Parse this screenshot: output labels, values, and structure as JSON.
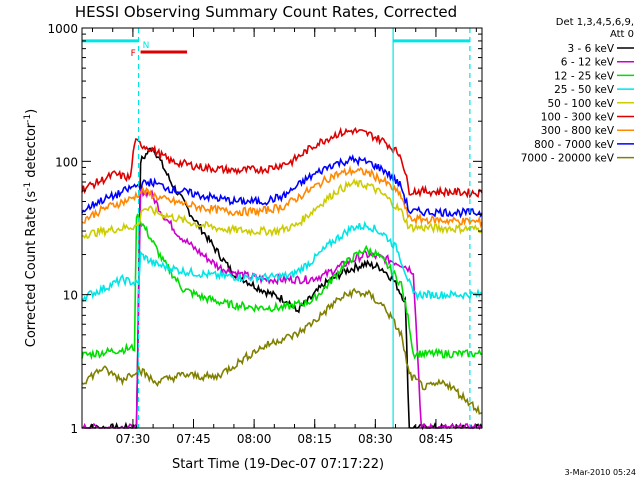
{
  "chart_data": {
    "type": "line",
    "title": "HESSI Observing Summary Count Rates, Corrected",
    "xlabel": "Start Time (19-Dec-07 07:17:22)",
    "ylabel_main": "Corrected Count Rate (s",
    "ylabel_sup1": "-1",
    "ylabel_mid": " detector",
    "ylabel_sup2": "-1",
    "ylabel_end": ")",
    "x_unit": "minutes after 07:17:22",
    "xlim": [
      0,
      99
    ],
    "ylim": [
      1,
      1000
    ],
    "yscale": "log",
    "x_ticks": [
      {
        "label": "07:30",
        "value": 12.6
      },
      {
        "label": "07:45",
        "value": 27.6
      },
      {
        "label": "08:00",
        "value": 42.6
      },
      {
        "label": "08:15",
        "value": 57.6
      },
      {
        "label": "08:30",
        "value": 72.6
      },
      {
        "label": "08:45",
        "value": 87.6
      }
    ],
    "y_ticks": [
      {
        "label": "1",
        "value": 1
      },
      {
        "label": "10",
        "value": 10
      },
      {
        "label": "100",
        "value": 100
      },
      {
        "label": "1000",
        "value": 1000
      }
    ],
    "legend_header": [
      "Det 1,3,4,5,6,9,",
      "Att 0"
    ],
    "series": [
      {
        "name": "3 - 6 keV",
        "color": "#000000",
        "points": [
          [
            0,
            1
          ],
          [
            13.5,
            1
          ],
          [
            14.5,
            100
          ],
          [
            17.5,
            130
          ],
          [
            22,
            70
          ],
          [
            27,
            40
          ],
          [
            33,
            22
          ],
          [
            37,
            15
          ],
          [
            42,
            12
          ],
          [
            47,
            10
          ],
          [
            51,
            9
          ],
          [
            53,
            7.5
          ],
          [
            56,
            9
          ],
          [
            60,
            12
          ],
          [
            65,
            15
          ],
          [
            70,
            17
          ],
          [
            74,
            16
          ],
          [
            77,
            13
          ],
          [
            80,
            9
          ],
          [
            81,
            1
          ],
          [
            99,
            1
          ]
        ]
      },
      {
        "name": "6 - 12 keV",
        "color": "#cc00cc",
        "points": [
          [
            0,
            1
          ],
          [
            13.5,
            1
          ],
          [
            14.5,
            60
          ],
          [
            17,
            58
          ],
          [
            20,
            40
          ],
          [
            24,
            28
          ],
          [
            28,
            22
          ],
          [
            34,
            16
          ],
          [
            40,
            14
          ],
          [
            45,
            13
          ],
          [
            50,
            13
          ],
          [
            56,
            13
          ],
          [
            60,
            14
          ],
          [
            65,
            17
          ],
          [
            70,
            20
          ],
          [
            74,
            19
          ],
          [
            79,
            17
          ],
          [
            82,
            15
          ],
          [
            84,
            1
          ],
          [
            99,
            1
          ]
        ]
      },
      {
        "name": "12 - 25 keV",
        "color": "#00dd00",
        "points": [
          [
            0,
            3.5
          ],
          [
            8,
            3.8
          ],
          [
            13,
            4
          ],
          [
            13.5,
            40
          ],
          [
            16,
            30
          ],
          [
            20,
            18
          ],
          [
            25,
            11
          ],
          [
            30,
            9.5
          ],
          [
            36,
            8.5
          ],
          [
            43,
            8
          ],
          [
            50,
            8
          ],
          [
            57,
            9
          ],
          [
            61,
            12
          ],
          [
            65,
            17
          ],
          [
            70,
            22
          ],
          [
            73,
            20
          ],
          [
            76,
            16
          ],
          [
            79,
            12
          ],
          [
            81,
            6
          ],
          [
            82,
            3.6
          ],
          [
            99,
            3.6
          ]
        ]
      },
      {
        "name": "25 - 50 keV",
        "color": "#00e5e5",
        "points": [
          [
            0,
            9.5
          ],
          [
            5,
            11
          ],
          [
            10,
            13
          ],
          [
            14,
            12
          ],
          [
            14.5,
            20
          ],
          [
            18,
            17
          ],
          [
            25,
            15
          ],
          [
            32,
            14
          ],
          [
            40,
            13.5
          ],
          [
            47,
            13.5
          ],
          [
            52,
            14
          ],
          [
            57,
            18
          ],
          [
            62,
            25
          ],
          [
            67,
            32
          ],
          [
            71,
            33
          ],
          [
            75,
            28
          ],
          [
            78,
            22
          ],
          [
            80,
            15
          ],
          [
            82,
            10
          ],
          [
            99,
            10
          ]
        ]
      },
      {
        "name": "50 - 100 keV",
        "color": "#cccc00",
        "points": [
          [
            0,
            28
          ],
          [
            8,
            31
          ],
          [
            14,
            33
          ],
          [
            15,
            45
          ],
          [
            20,
            40
          ],
          [
            28,
            34
          ],
          [
            35,
            31
          ],
          [
            42,
            30
          ],
          [
            48,
            30
          ],
          [
            53,
            33
          ],
          [
            58,
            45
          ],
          [
            63,
            60
          ],
          [
            67,
            68
          ],
          [
            71,
            66
          ],
          [
            75,
            55
          ],
          [
            79,
            42
          ],
          [
            81,
            32
          ],
          [
            99,
            31
          ]
        ]
      },
      {
        "name": "100 - 300 keV",
        "color": "#dd0000",
        "points": [
          [
            0,
            62
          ],
          [
            4,
            70
          ],
          [
            8,
            80
          ],
          [
            12,
            75
          ],
          [
            13,
            140
          ],
          [
            17,
            125
          ],
          [
            22,
            100
          ],
          [
            30,
            90
          ],
          [
            38,
            85
          ],
          [
            46,
            88
          ],
          [
            52,
            100
          ],
          [
            58,
            135
          ],
          [
            63,
            160
          ],
          [
            67,
            170
          ],
          [
            71,
            160
          ],
          [
            75,
            140
          ],
          [
            79,
            110
          ],
          [
            81,
            60
          ],
          [
            99,
            58
          ]
        ]
      },
      {
        "name": "300 - 800 keV",
        "color": "#ff8800",
        "points": [
          [
            0,
            36
          ],
          [
            6,
            45
          ],
          [
            12,
            52
          ],
          [
            15,
            60
          ],
          [
            20,
            52
          ],
          [
            28,
            46
          ],
          [
            36,
            42
          ],
          [
            44,
            42
          ],
          [
            50,
            46
          ],
          [
            56,
            60
          ],
          [
            62,
            78
          ],
          [
            67,
            85
          ],
          [
            71,
            82
          ],
          [
            75,
            70
          ],
          [
            79,
            55
          ],
          [
            81,
            37
          ],
          [
            99,
            35
          ]
        ]
      },
      {
        "name": "800 - 7000 keV",
        "color": "#0000ff",
        "points": [
          [
            0,
            42
          ],
          [
            4,
            50
          ],
          [
            8,
            55
          ],
          [
            13,
            65
          ],
          [
            17,
            70
          ],
          [
            22,
            62
          ],
          [
            30,
            55
          ],
          [
            38,
            50
          ],
          [
            45,
            50
          ],
          [
            50,
            55
          ],
          [
            56,
            75
          ],
          [
            62,
            95
          ],
          [
            67,
            103
          ],
          [
            71,
            98
          ],
          [
            75,
            85
          ],
          [
            79,
            65
          ],
          [
            81,
            42
          ],
          [
            99,
            41
          ]
        ]
      },
      {
        "name": "7000 - 20000 keV",
        "color": "#808000",
        "points": [
          [
            0,
            2.2
          ],
          [
            5,
            2.8
          ],
          [
            10,
            2.3
          ],
          [
            14,
            2.8
          ],
          [
            18,
            2.2
          ],
          [
            25,
            2.5
          ],
          [
            33,
            2.4
          ],
          [
            38,
            3
          ],
          [
            43,
            3.8
          ],
          [
            48,
            4.5
          ],
          [
            53,
            5
          ],
          [
            58,
            6.5
          ],
          [
            63,
            9
          ],
          [
            67,
            10.5
          ],
          [
            71,
            10
          ],
          [
            75,
            8
          ],
          [
            79,
            5
          ],
          [
            81,
            2.5
          ],
          [
            85,
            2
          ],
          [
            90,
            2.2
          ],
          [
            99,
            1.3
          ]
        ]
      }
    ],
    "vlines": [
      {
        "x": 14.0,
        "style": "dashed",
        "color": "#00e5e5"
      },
      {
        "x": 77.0,
        "style": "solid",
        "color": "#00e5e5"
      },
      {
        "x": 96.0,
        "style": "dashed",
        "color": "#00e5e5"
      }
    ],
    "flags": [
      {
        "label": "",
        "color": "#00e5e5",
        "y": 800,
        "segments": [
          [
            0,
            14
          ],
          [
            77,
            96
          ]
        ]
      },
      {
        "label": "F",
        "color": "#dd0000",
        "y": 660,
        "segments": [
          [
            14.5,
            26
          ]
        ]
      },
      {
        "label": "N",
        "color": "#00e5e5",
        "y": 760,
        "segments": []
      }
    ]
  },
  "footer_date": "3-Mar-2010 05:24"
}
